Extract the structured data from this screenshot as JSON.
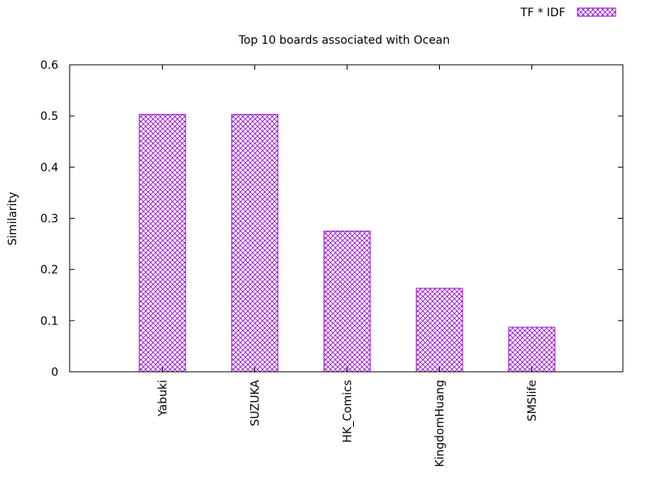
{
  "chart_data": {
    "type": "bar",
    "title": "Top 10 boards associated with Ocean",
    "xlabel": "",
    "ylabel": "Similarity",
    "ylim": [
      0,
      0.6
    ],
    "yticks": [
      "0",
      "0.1",
      "0.2",
      "0.3",
      "0.4",
      "0.5",
      "0.6"
    ],
    "grid": false,
    "legend_position": "top-right",
    "categories": [
      "Yabuki",
      "SUZUKA",
      "HK_Comics",
      "KingdomHuang",
      "SMSlife"
    ],
    "series": [
      {
        "name": "TF * IDF",
        "values": [
          0.503,
          0.503,
          0.275,
          0.163,
          0.087
        ],
        "color": "#9400d3"
      }
    ]
  }
}
